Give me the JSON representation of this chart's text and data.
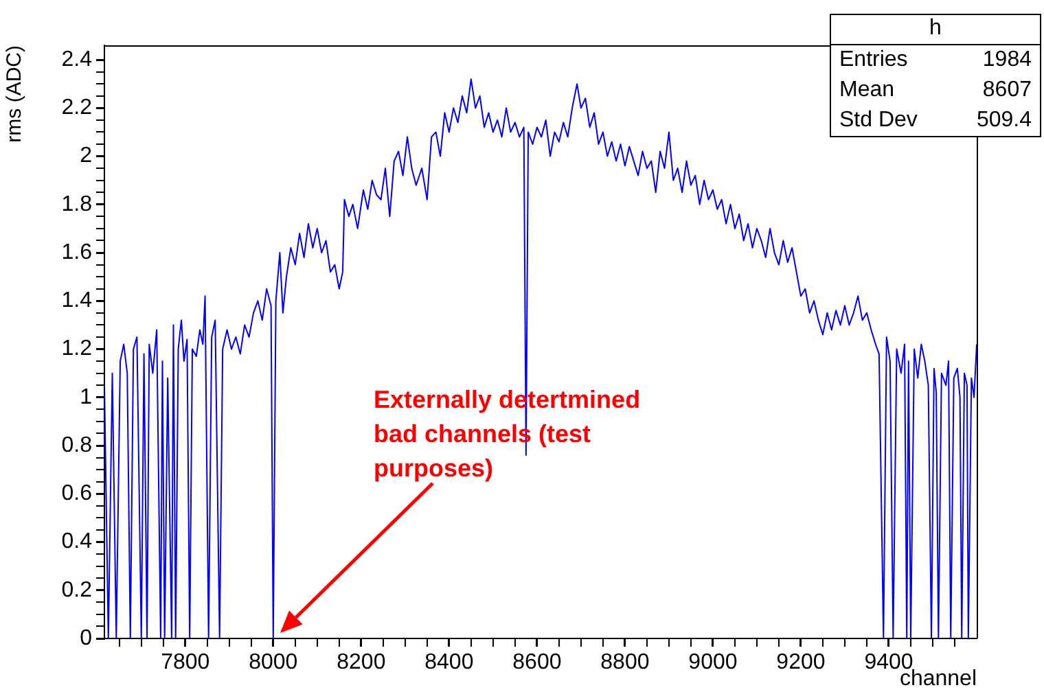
{
  "chart_data": {
    "type": "line",
    "xlabel": "channel",
    "ylabel": "rms (ADC)",
    "x": [
      7616,
      7625,
      7634,
      7643,
      7652,
      7660,
      7668,
      7675,
      7682,
      7690,
      7700,
      7706,
      7713,
      7718,
      7726,
      7735,
      7744,
      7748,
      7753,
      7760,
      7769,
      7773,
      7778,
      7784,
      7791,
      7797,
      7804,
      7810,
      7816,
      7825,
      7833,
      7840,
      7845,
      7853,
      7860,
      7868,
      7878,
      7885,
      7895,
      7905,
      7915,
      7925,
      7935,
      7945,
      7955,
      7965,
      7975,
      7985,
      7995,
      8000,
      8006,
      8015,
      8022,
      8030,
      8040,
      8050,
      8060,
      8070,
      8080,
      8090,
      8100,
      8110,
      8120,
      8130,
      8140,
      8150,
      8158,
      8162,
      8172,
      8181,
      8192,
      8205,
      8215,
      8225,
      8235,
      8245,
      8255,
      8265,
      8275,
      8285,
      8295,
      8305,
      8315,
      8325,
      8338,
      8350,
      8360,
      8370,
      8380,
      8390,
      8400,
      8410,
      8420,
      8430,
      8440,
      8450,
      8460,
      8470,
      8480,
      8490,
      8500,
      8510,
      8520,
      8530,
      8540,
      8550,
      8560,
      8570,
      8575,
      8580,
      8590,
      8600,
      8610,
      8620,
      8630,
      8640,
      8650,
      8660,
      8670,
      8680,
      8691,
      8700,
      8710,
      8720,
      8730,
      8740,
      8750,
      8760,
      8770,
      8780,
      8790,
      8800,
      8810,
      8820,
      8830,
      8840,
      8850,
      8860,
      8870,
      8880,
      8890,
      8900,
      8910,
      8920,
      8930,
      8940,
      8950,
      8960,
      8970,
      8980,
      8990,
      9000,
      9010,
      9020,
      9030,
      9040,
      9050,
      9060,
      9070,
      9080,
      9090,
      9100,
      9110,
      9120,
      9130,
      9140,
      9150,
      9160,
      9170,
      9180,
      9190,
      9200,
      9210,
      9220,
      9230,
      9240,
      9250,
      9260,
      9270,
      9280,
      9290,
      9300,
      9310,
      9320,
      9330,
      9340,
      9350,
      9360,
      9370,
      9378,
      9388,
      9395,
      9403,
      9410,
      9418,
      9428,
      9436,
      9441,
      9445,
      9450,
      9458,
      9466,
      9474,
      9482,
      9490,
      9497,
      9503,
      9508,
      9513,
      9520,
      9530,
      9536,
      9541,
      9548,
      9556,
      9562,
      9566,
      9572,
      9578,
      9581,
      9588,
      9594,
      9600
    ],
    "series": [
      {
        "color": "#0000ff",
        "values": [
          1.05,
          0,
          1.1,
          0,
          1.15,
          1.22,
          1.1,
          0,
          1.2,
          1.25,
          0,
          1.18,
          0,
          1.22,
          1.1,
          1.28,
          0,
          1.15,
          0,
          1.08,
          0,
          1.3,
          0,
          1.2,
          1.32,
          1.15,
          1.24,
          0,
          1.2,
          1.17,
          1.28,
          1.22,
          1.42,
          0,
          1.25,
          1.32,
          0,
          1.2,
          1.28,
          1.2,
          1.25,
          1.18,
          1.3,
          1.25,
          1.35,
          1.4,
          1.32,
          1.45,
          1.38,
          0,
          1.4,
          1.6,
          1.35,
          1.5,
          1.62,
          1.55,
          1.68,
          1.58,
          1.72,
          1.62,
          1.7,
          1.6,
          1.65,
          1.52,
          1.55,
          1.45,
          1.52,
          1.82,
          1.75,
          1.8,
          1.7,
          1.86,
          1.78,
          1.9,
          1.84,
          1.82,
          1.95,
          1.75,
          1.98,
          2.02,
          1.92,
          2.08,
          1.95,
          1.88,
          1.95,
          1.82,
          2.08,
          2.1,
          2.0,
          2.18,
          2.1,
          2.2,
          2.14,
          2.25,
          2.18,
          2.32,
          2.2,
          2.25,
          2.12,
          2.18,
          2.1,
          2.15,
          2.08,
          2.2,
          2.1,
          2.14,
          2.08,
          2.12,
          0.76,
          2.1,
          2.05,
          2.12,
          2.08,
          2.15,
          2.0,
          2.1,
          2.06,
          2.14,
          2.08,
          2.2,
          2.3,
          2.2,
          2.24,
          2.12,
          2.18,
          2.05,
          2.1,
          2.0,
          2.06,
          1.98,
          2.05,
          1.96,
          2.04,
          1.98,
          1.92,
          2.02,
          1.95,
          1.98,
          1.85,
          2.02,
          1.95,
          2.1,
          1.9,
          1.95,
          1.85,
          1.98,
          1.88,
          1.92,
          1.8,
          1.9,
          1.82,
          1.86,
          1.78,
          1.82,
          1.72,
          1.8,
          1.7,
          1.76,
          1.65,
          1.72,
          1.62,
          1.7,
          1.65,
          1.58,
          1.7,
          1.6,
          1.55,
          1.65,
          1.56,
          1.62,
          1.52,
          1.42,
          1.45,
          1.35,
          1.4,
          1.32,
          1.26,
          1.35,
          1.28,
          1.36,
          1.3,
          1.38,
          1.3,
          1.35,
          1.42,
          1.32,
          1.35,
          1.28,
          1.22,
          1.18,
          0,
          1.25,
          1.15,
          0,
          1.2,
          1.1,
          1.22,
          0,
          1.15,
          0,
          1.2,
          1.08,
          1.22,
          1.15,
          1.05,
          0,
          1.12,
          1.02,
          0,
          1.1,
          1.05,
          1.15,
          0,
          1.08,
          1.12,
          1.0,
          0,
          1.1,
          1.05,
          0,
          1.08,
          1.0,
          1.22
        ]
      }
    ],
    "xlim": [
      7616,
      9600
    ],
    "ylim": [
      0,
      2.46
    ],
    "xticks": [
      {
        "value": 7650,
        "label": null
      },
      {
        "value": 7700,
        "label": null
      },
      {
        "value": 7750,
        "label": null
      },
      7800,
      {
        "value": 7850,
        "label": null
      },
      {
        "value": 7900,
        "label": null
      },
      {
        "value": 7950,
        "label": null
      },
      8000,
      {
        "value": 8050,
        "label": null
      },
      {
        "value": 8100,
        "label": null
      },
      {
        "value": 8150,
        "label": null
      },
      8200,
      {
        "value": 8250,
        "label": null
      },
      {
        "value": 8300,
        "label": null
      },
      {
        "value": 8350,
        "label": null
      },
      8400,
      {
        "value": 8450,
        "label": null
      },
      {
        "value": 8500,
        "label": null
      },
      {
        "value": 8550,
        "label": null
      },
      8600,
      {
        "value": 8650,
        "label": null
      },
      {
        "value": 8700,
        "label": null
      },
      {
        "value": 8750,
        "label": null
      },
      8800,
      {
        "value": 8850,
        "label": null
      },
      {
        "value": 8900,
        "label": null
      },
      {
        "value": 8950,
        "label": null
      },
      9000,
      {
        "value": 9050,
        "label": null
      },
      {
        "value": 9100,
        "label": null
      },
      {
        "value": 9150,
        "label": null
      },
      9200,
      {
        "value": 9250,
        "label": null
      },
      {
        "value": 9300,
        "label": null
      },
      {
        "value": 9350,
        "label": null
      },
      9400,
      {
        "value": 9450,
        "label": null
      },
      {
        "value": 9500,
        "label": null
      },
      {
        "value": 9550,
        "label": null
      }
    ],
    "yticks": [
      0,
      {
        "value": 0.05,
        "label": null
      },
      {
        "value": 0.1,
        "label": null
      },
      {
        "value": 0.15,
        "label": null
      },
      0.2,
      {
        "value": 0.25,
        "label": null
      },
      {
        "value": 0.3,
        "label": null
      },
      {
        "value": 0.35,
        "label": null
      },
      0.4,
      {
        "value": 0.45,
        "label": null
      },
      {
        "value": 0.5,
        "label": null
      },
      {
        "value": 0.55,
        "label": null
      },
      0.6,
      {
        "value": 0.65,
        "label": null
      },
      {
        "value": 0.7,
        "label": null
      },
      {
        "value": 0.75,
        "label": null
      },
      0.8,
      {
        "value": 0.85,
        "label": null
      },
      {
        "value": 0.9,
        "label": null
      },
      {
        "value": 0.95,
        "label": null
      },
      1,
      {
        "value": 1.05,
        "label": null
      },
      {
        "value": 1.1,
        "label": null
      },
      {
        "value": 1.15,
        "label": null
      },
      1.2,
      {
        "value": 1.25,
        "label": null
      },
      {
        "value": 1.3,
        "label": null
      },
      {
        "value": 1.35,
        "label": null
      },
      1.4,
      {
        "value": 1.45,
        "label": null
      },
      {
        "value": 1.5,
        "label": null
      },
      {
        "value": 1.55,
        "label": null
      },
      1.6,
      {
        "value": 1.65,
        "label": null
      },
      {
        "value": 1.7,
        "label": null
      },
      {
        "value": 1.75,
        "label": null
      },
      1.8,
      {
        "value": 1.85,
        "label": null
      },
      {
        "value": 1.9,
        "label": null
      },
      {
        "value": 1.95,
        "label": null
      },
      2,
      {
        "value": 2.05,
        "label": null
      },
      {
        "value": 2.1,
        "label": null
      },
      {
        "value": 2.15,
        "label": null
      },
      2.2,
      {
        "value": 2.25,
        "label": null
      },
      {
        "value": 2.3,
        "label": null
      },
      {
        "value": 2.35,
        "label": null
      },
      2.4
    ],
    "grid": false,
    "legend": false,
    "marker": "none",
    "line_style": "solid",
    "annotations": [
      "Externally detertmined bad channels (test purposes)",
      "h",
      "Entries",
      "1984",
      "Mean",
      "8607",
      "Std Dev",
      "509.4"
    ]
  }
}
